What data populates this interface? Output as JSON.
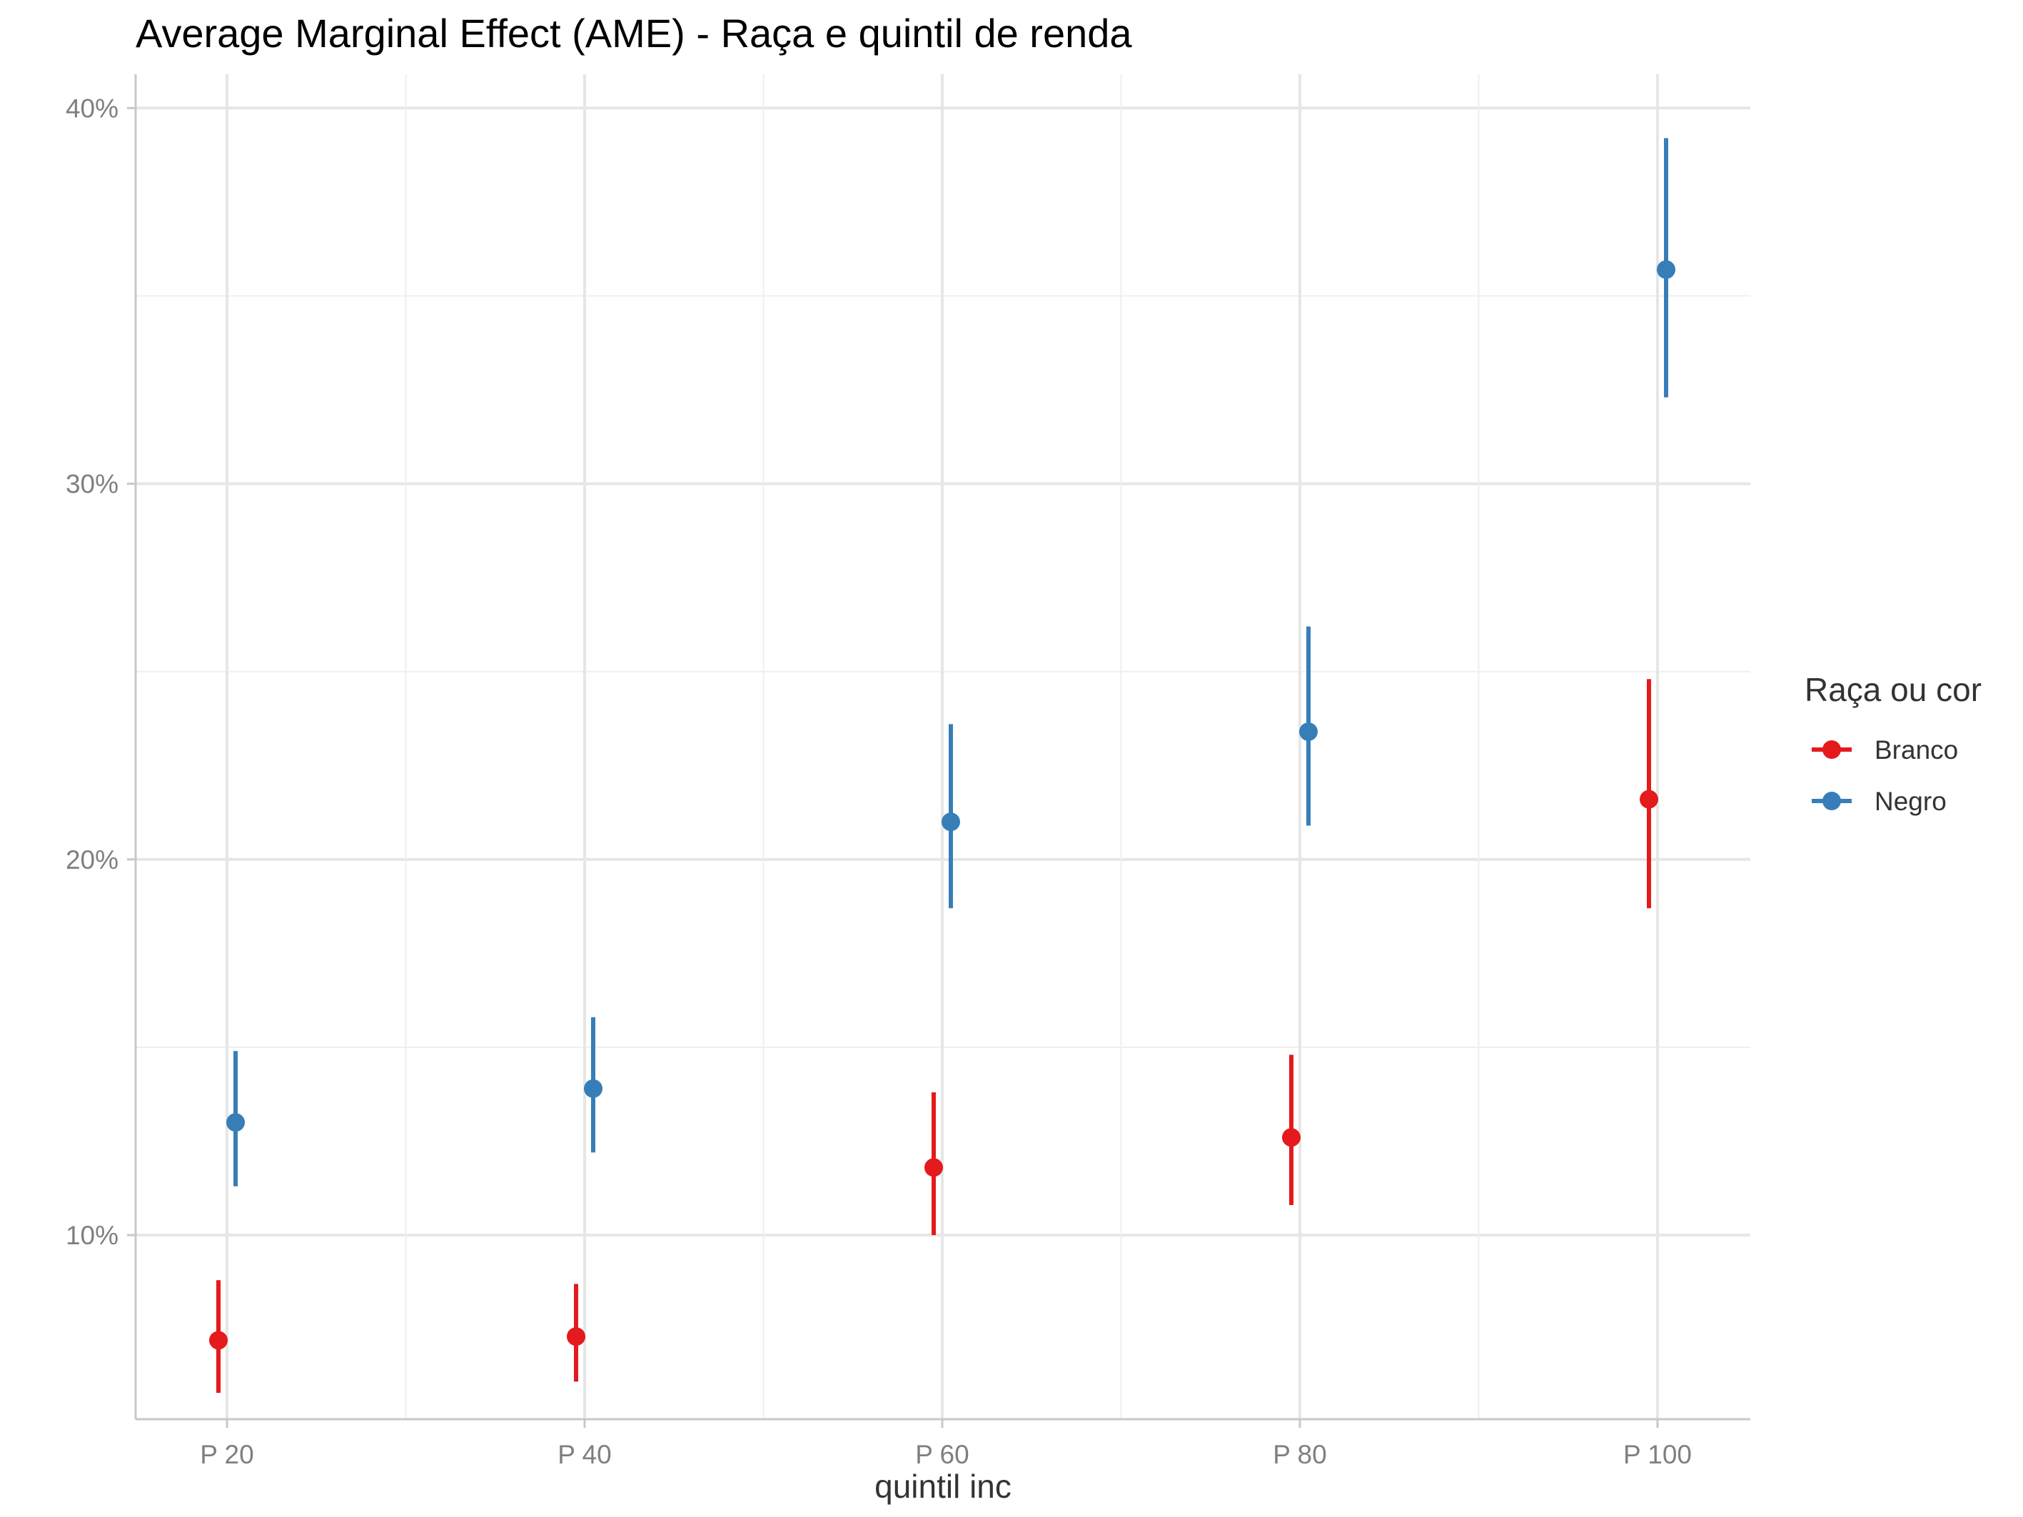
{
  "chart_data": {
    "type": "scatter",
    "title": "Average Marginal Effect (AME) - Raça e quintil de renda",
    "xlabel": "quintil inc",
    "ylabel": "",
    "categories": [
      "P 20",
      "P 40",
      "P 60",
      "P 80",
      "P 100"
    ],
    "ylim": [
      5.1,
      40.9
    ],
    "yticks": [
      10,
      20,
      30,
      40
    ],
    "ytick_labels": [
      "10%",
      "20%",
      "30%",
      "40%"
    ],
    "grid": true,
    "legend": {
      "title": "Raça ou cor",
      "position": "right"
    },
    "series": [
      {
        "name": "Branco",
        "color": "#e41a1c",
        "values": [
          7.2,
          7.3,
          11.8,
          12.6,
          21.6
        ],
        "lower": [
          5.8,
          6.1,
          10.0,
          10.8,
          18.7
        ],
        "upper": [
          8.8,
          8.7,
          13.8,
          14.8,
          24.8
        ]
      },
      {
        "name": "Negro",
        "color": "#377eb8",
        "values": [
          13.0,
          13.9,
          21.0,
          23.4,
          35.7
        ],
        "lower": [
          11.3,
          12.2,
          18.7,
          20.9,
          32.3
        ],
        "upper": [
          14.9,
          15.8,
          23.6,
          26.2,
          39.2
        ]
      }
    ]
  }
}
